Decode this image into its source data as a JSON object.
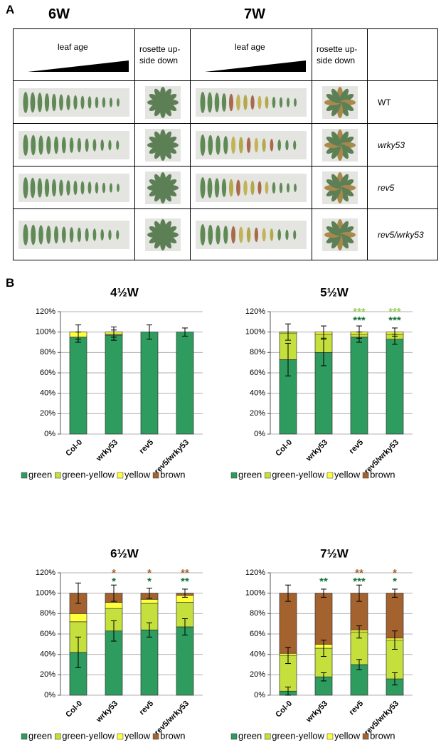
{
  "panel_a": {
    "label": "A",
    "headers": [
      "6W",
      "7W"
    ],
    "columns": [
      "leaf age",
      "rosette up-side down",
      "leaf age",
      "rosette up-side down"
    ],
    "rows": [
      "WT",
      "wrky53",
      "rev5",
      "rev5/wrky53"
    ]
  },
  "panel_b": {
    "label": "B"
  },
  "chart_data": [
    {
      "type": "bar",
      "stacked": true,
      "title": "4½W",
      "categories": [
        "Col-0",
        "wrky53",
        "rev5",
        "rev5/wrky53"
      ],
      "ylim": [
        0,
        120
      ],
      "yticks": [
        {
          "value": 0,
          "label": "0%"
        },
        {
          "value": 20,
          "label": "20%"
        },
        {
          "value": 40,
          "label": "40%"
        },
        {
          "value": 60,
          "label": "60%"
        },
        {
          "value": 80,
          "label": "80%"
        },
        {
          "value": 100,
          "label": "100%"
        },
        {
          "value": 120,
          "label": "120%"
        }
      ],
      "grid": true,
      "series": [
        {
          "name": "green",
          "color": "#2e9c5e",
          "values": [
            95,
            97,
            100,
            100
          ],
          "errors": [
            5,
            5,
            7,
            4
          ]
        },
        {
          "name": "green-yellow",
          "color": "#c5e03c",
          "values": [
            0,
            1,
            0,
            0
          ],
          "errors": [
            null,
            null,
            null,
            null
          ]
        },
        {
          "name": "yellow",
          "color": "#ffff3c",
          "values": [
            5,
            2,
            0,
            0
          ],
          "errors": [
            7,
            5,
            null,
            null
          ]
        },
        {
          "name": "brown",
          "color": "#a4632e",
          "values": [
            0,
            0,
            0,
            0
          ],
          "errors": [
            null,
            null,
            null,
            null
          ]
        }
      ],
      "annotations": []
    },
    {
      "type": "bar",
      "stacked": true,
      "title": "5½W",
      "categories": [
        "Col-0",
        "wrky53",
        "rev5",
        "rev5/wrky53"
      ],
      "ylim": [
        0,
        120
      ],
      "yticks": [
        {
          "value": 0,
          "label": "0%"
        },
        {
          "value": 20,
          "label": "20%"
        },
        {
          "value": 40,
          "label": "40%"
        },
        {
          "value": 60,
          "label": "60%"
        },
        {
          "value": 80,
          "label": "80%"
        },
        {
          "value": 100,
          "label": "100%"
        },
        {
          "value": 120,
          "label": "120%"
        }
      ],
      "grid": true,
      "series": [
        {
          "name": "green",
          "color": "#2e9c5e",
          "values": [
            73,
            80,
            95,
            93
          ],
          "errors": [
            16,
            13,
            5,
            5
          ]
        },
        {
          "name": "green-yellow",
          "color": "#c5e03c",
          "values": [
            26,
            18,
            3,
            5
          ],
          "errors": [
            null,
            null,
            null,
            null
          ]
        },
        {
          "name": "yellow",
          "color": "#ffff3c",
          "values": [
            1,
            2,
            2,
            2
          ],
          "errors": [
            8,
            6,
            6,
            4
          ]
        },
        {
          "name": "brown",
          "color": "#a4632e",
          "values": [
            0,
            0,
            0,
            0
          ],
          "errors": [
            null,
            null,
            null,
            null
          ]
        }
      ],
      "annotations": [
        {
          "text": "***",
          "color": "#9acd5a",
          "category": "rev5"
        },
        {
          "text": "***",
          "color": "#17733d",
          "category": "rev5"
        },
        {
          "text": "***",
          "color": "#9acd5a",
          "category": "rev5/wrky53"
        },
        {
          "text": "***",
          "color": "#17733d",
          "category": "rev5/wrky53"
        }
      ]
    },
    {
      "type": "bar",
      "stacked": true,
      "title": "6½W",
      "categories": [
        "Col-0",
        "wrky53",
        "rev5",
        "rev5/wrky53"
      ],
      "ylim": [
        0,
        120
      ],
      "yticks": [
        {
          "value": 0,
          "label": "0%"
        },
        {
          "value": 20,
          "label": "20%"
        },
        {
          "value": 40,
          "label": "40%"
        },
        {
          "value": 60,
          "label": "60%"
        },
        {
          "value": 80,
          "label": "80%"
        },
        {
          "value": 100,
          "label": "100%"
        },
        {
          "value": 120,
          "label": "120%"
        }
      ],
      "grid": true,
      "series": [
        {
          "name": "green",
          "color": "#2e9c5e",
          "values": [
            42,
            63,
            64,
            67
          ],
          "errors": [
            15,
            10,
            7,
            8
          ]
        },
        {
          "name": "green-yellow",
          "color": "#c5e03c",
          "values": [
            30,
            22,
            26,
            24
          ],
          "errors": [
            null,
            null,
            null,
            null
          ]
        },
        {
          "name": "yellow",
          "color": "#ffff3c",
          "values": [
            8,
            6,
            4,
            7
          ],
          "errors": [
            null,
            null,
            null,
            null
          ]
        },
        {
          "name": "brown",
          "color": "#a4632e",
          "values": [
            20,
            9,
            6,
            2
          ],
          "errors": [
            10,
            8,
            5,
            4
          ]
        }
      ],
      "annotations": [
        {
          "text": "*",
          "color": "#a4632e",
          "category": "wrky53"
        },
        {
          "text": "*",
          "color": "#17733d",
          "category": "wrky53"
        },
        {
          "text": "*",
          "color": "#a4632e",
          "category": "rev5"
        },
        {
          "text": "*",
          "color": "#17733d",
          "category": "rev5"
        },
        {
          "text": "**",
          "color": "#a4632e",
          "category": "rev5/wrky53"
        },
        {
          "text": "**",
          "color": "#17733d",
          "category": "rev5/wrky53"
        }
      ]
    },
    {
      "type": "bar",
      "stacked": true,
      "title": "7½W",
      "categories": [
        "Col-0",
        "wrky53",
        "rev5",
        "rev5/wrky53"
      ],
      "ylim": [
        0,
        120
      ],
      "yticks": [
        {
          "value": 0,
          "label": "0%"
        },
        {
          "value": 20,
          "label": "20%"
        },
        {
          "value": 40,
          "label": "40%"
        },
        {
          "value": 60,
          "label": "60%"
        },
        {
          "value": 80,
          "label": "80%"
        },
        {
          "value": 100,
          "label": "100%"
        },
        {
          "value": 120,
          "label": "120%"
        }
      ],
      "grid": true,
      "series": [
        {
          "name": "green",
          "color": "#2e9c5e",
          "values": [
            4,
            18,
            30,
            16
          ],
          "errors": [
            4,
            4,
            5,
            6
          ]
        },
        {
          "name": "green-yellow",
          "color": "#c5e03c",
          "values": [
            35,
            28,
            32,
            38
          ],
          "errors": [
            8,
            8,
            6,
            9
          ]
        },
        {
          "name": "yellow",
          "color": "#ffff3c",
          "values": [
            2,
            4,
            2,
            2
          ],
          "errors": [
            null,
            null,
            null,
            null
          ]
        },
        {
          "name": "brown",
          "color": "#a4632e",
          "values": [
            59,
            50,
            36,
            44
          ],
          "errors": [
            8,
            4,
            8,
            4
          ]
        }
      ],
      "annotations": [
        {
          "text": "**",
          "color": "#17733d",
          "category": "wrky53"
        },
        {
          "text": "**",
          "color": "#a4632e",
          "category": "rev5"
        },
        {
          "text": "***",
          "color": "#17733d",
          "category": "rev5"
        },
        {
          "text": "*",
          "color": "#a4632e",
          "category": "rev5/wrky53"
        },
        {
          "text": "*",
          "color": "#17733d",
          "category": "rev5/wrky53"
        }
      ]
    }
  ]
}
